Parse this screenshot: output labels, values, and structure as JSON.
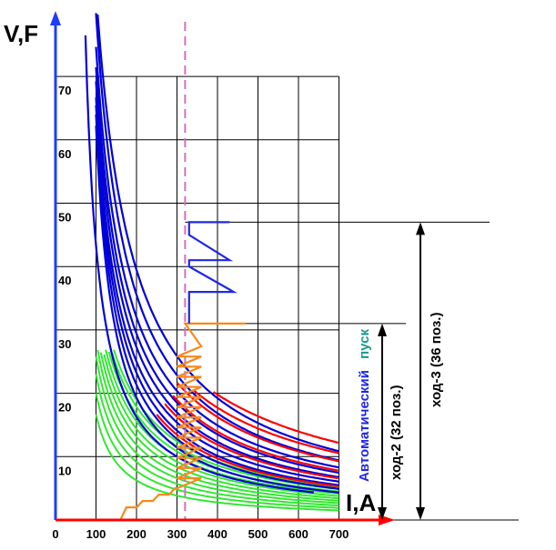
{
  "axes": {
    "y_title": "V,F",
    "x_title": "I,A",
    "x_ticks": [
      "0",
      "100",
      "200",
      "300",
      "400",
      "500",
      "600",
      "700"
    ],
    "y_ticks": [
      "10",
      "20",
      "30",
      "40",
      "50",
      "60",
      "70"
    ]
  },
  "labels": {
    "auto_start_part1": "Автоматический",
    "auto_start_part2": "пуск",
    "hod2": "ход-2 (32 поз.)",
    "hod3": "ход-3 (36 поз.)"
  },
  "colors": {
    "axis": "#1e3cff",
    "axis_x": "#ff0000",
    "grid": "#000000",
    "red_curves": "#ff0000",
    "blue_curves": "#0000d8",
    "green_curves": "#33e633",
    "orange_path": "#f58a1e",
    "blue_path": "#1e28e6",
    "dashed_line": "#d070c0",
    "auto_text": "#1e28e6",
    "pusk_text": "#149b8c"
  },
  "chart_data": {
    "type": "diagram",
    "x_range": [
      0,
      700
    ],
    "y_range": [
      0,
      70
    ],
    "dashed_current": 320,
    "hod2_level": 31,
    "hod3_level": 47,
    "auto_start_level_current": 320
  }
}
